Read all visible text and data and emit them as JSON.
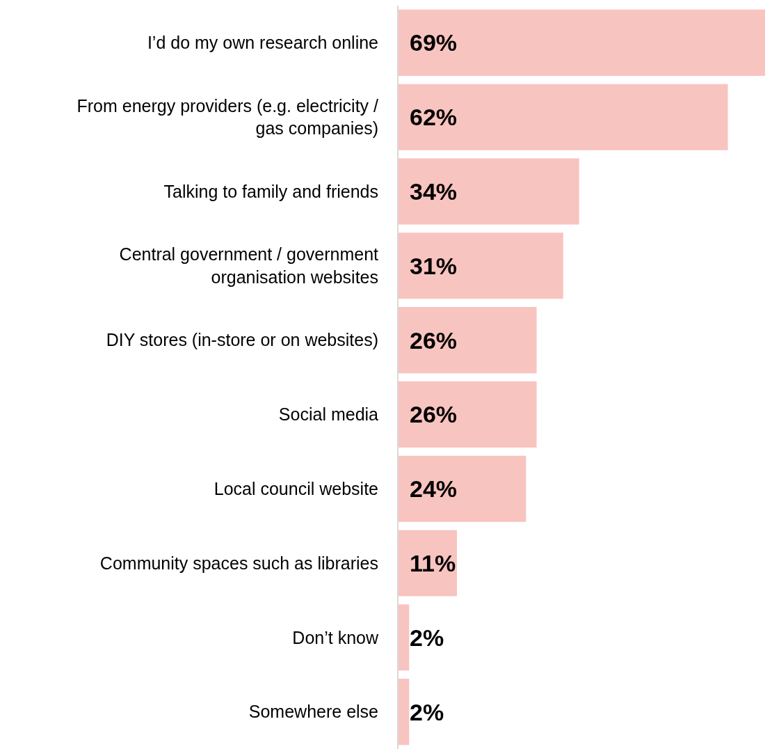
{
  "chart_data": {
    "type": "bar",
    "orientation": "horizontal",
    "categories": [
      "I’d do my own research online",
      "From energy providers (e.g. electricity / gas companies)",
      "Talking to family and friends",
      "Central government / government organisation websites",
      "DIY stores (in-store or on websites)",
      "Social media",
      "Local council website",
      "Community spaces such as libraries",
      "Don’t know",
      "Somewhere else"
    ],
    "values": [
      69,
      62,
      34,
      31,
      26,
      26,
      24,
      11,
      2,
      2
    ],
    "value_labels": [
      "69%",
      "62%",
      "34%",
      "31%",
      "26%",
      "26%",
      "24%",
      "11%",
      "2%",
      "2%"
    ],
    "color": "#f8c4c0",
    "xlim": [
      0,
      69
    ],
    "legend": false
  }
}
